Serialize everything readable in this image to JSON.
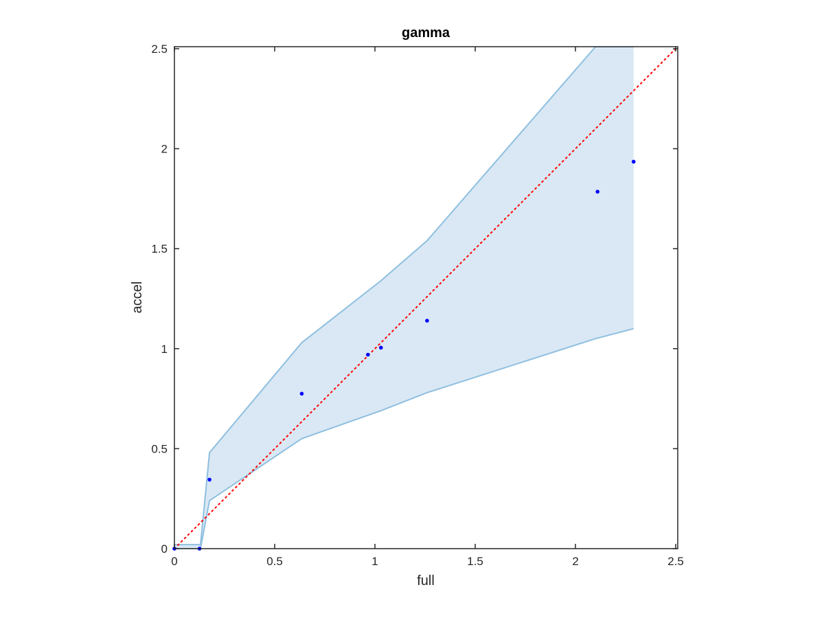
{
  "chart_data": {
    "type": "scatter",
    "title": "gamma",
    "xlabel": "full",
    "ylabel": "accel",
    "xlim": [
      0,
      2.51
    ],
    "ylim": [
      0,
      2.51
    ],
    "xticks": [
      0,
      0.5,
      1,
      1.5,
      2,
      2.5
    ],
    "yticks": [
      0,
      0.5,
      1,
      1.5,
      2,
      2.5
    ],
    "xtick_labels": [
      "0",
      "0.5",
      "1",
      "1.5",
      "2",
      "2.5"
    ],
    "ytick_labels": [
      "0",
      "0.5",
      "1",
      "1.5",
      "2",
      "2.5"
    ],
    "grid": false,
    "band": {
      "x": [
        0,
        0.13,
        0.175,
        0.635,
        1.03,
        1.26,
        2.1,
        2.29
      ],
      "upper": [
        0.02,
        0.02,
        0.48,
        1.03,
        1.34,
        1.54,
        2.51,
        2.51
      ],
      "lower": [
        0,
        0,
        0.24,
        0.55,
        0.69,
        0.78,
        1.05,
        1.1
      ],
      "fill_color": "#d9e8f4",
      "edge_color": "#8ebfe0"
    },
    "points": {
      "x": [
        0,
        0.125,
        0.175,
        0.635,
        0.965,
        1.03,
        1.26,
        2.11,
        2.29
      ],
      "y": [
        0,
        0,
        0.345,
        0.775,
        0.97,
        1.005,
        1.14,
        1.785,
        1.935
      ],
      "color": "#0000ff"
    },
    "reference_line": {
      "x": [
        0,
        2.51
      ],
      "y": [
        0,
        2.51
      ],
      "color": "#ff0000",
      "style": "dotted"
    }
  }
}
